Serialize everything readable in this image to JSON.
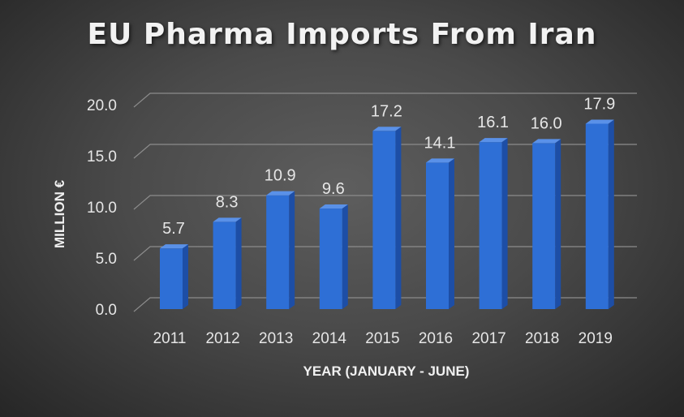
{
  "chart_data": {
    "type": "bar",
    "title": "EU Pharma Imports From Iran",
    "xlabel": "YEAR (JANUARY - JUNE)",
    "ylabel": "MILLION €",
    "categories": [
      "2011",
      "2012",
      "2013",
      "2014",
      "2015",
      "2016",
      "2017",
      "2018",
      "2019"
    ],
    "values": [
      5.7,
      8.3,
      10.9,
      9.6,
      17.2,
      14.1,
      16.1,
      16.0,
      17.9
    ],
    "data_labels": [
      "5.7",
      "8.3",
      "10.9",
      "9.6",
      "17.2",
      "14.1",
      "16.1",
      "16.0",
      "17.9"
    ],
    "yticks": [
      "0.0",
      "5.0",
      "10.0",
      "15.0",
      "20.0"
    ],
    "ylim": [
      0,
      20
    ],
    "grid": true,
    "legend": "none",
    "colors": {
      "bar": "#2e6fd6",
      "bar_dark": "#1d4ea6",
      "bar_top": "#5a91e8",
      "grid": "#8c8c8c",
      "text": "#e6e6e6"
    }
  }
}
